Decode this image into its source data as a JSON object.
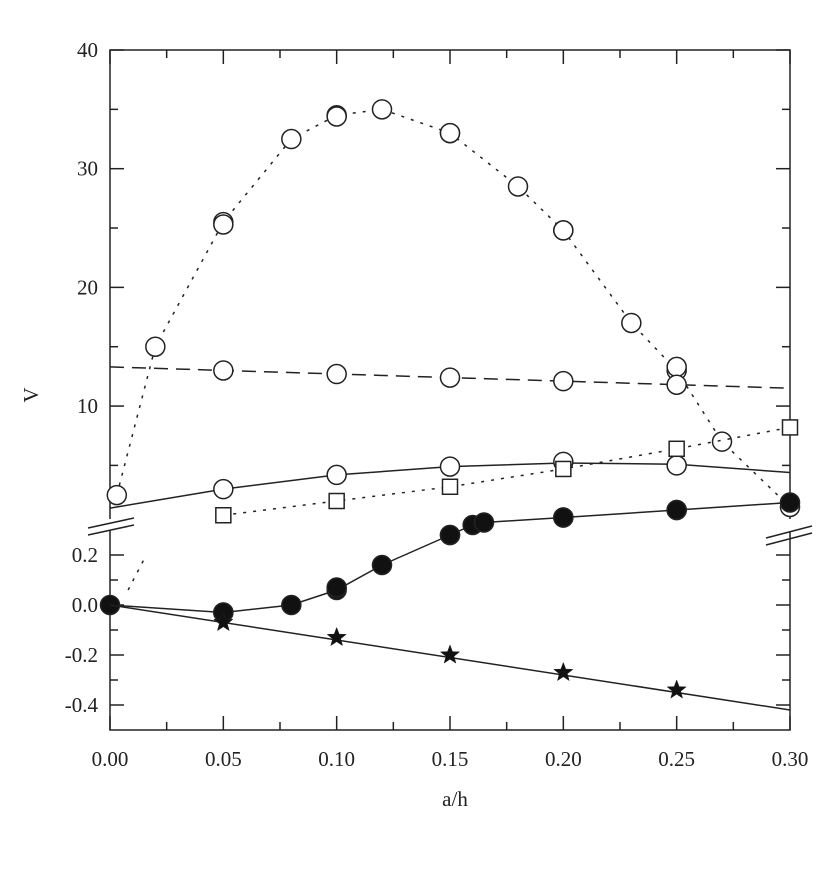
{
  "chart_data": {
    "type": "line",
    "xlabel": "a/h",
    "ylabel": "V",
    "xlim": [
      0,
      0.3
    ],
    "xticks": [
      {
        "value": 0,
        "label": "0.00"
      },
      {
        "value": 0.05,
        "label": "0.05"
      },
      {
        "value": 0.1,
        "label": "0.10"
      },
      {
        "value": 0.15,
        "label": "0.15"
      },
      {
        "value": 0.2,
        "label": "0.20"
      },
      {
        "value": 0.25,
        "label": "0.25"
      },
      {
        "value": 0.3,
        "label": "0.30"
      }
    ],
    "xminorticks": [
      0.025,
      0.075,
      0.125,
      0.175,
      0.225,
      0.275
    ],
    "panels": [
      {
        "ylim": [
          0.4,
          40
        ],
        "yticks": [
          10,
          20,
          30,
          40
        ],
        "yminorticks": [
          5,
          15,
          25,
          35
        ],
        "series": [
          {
            "marker": "open-circle",
            "line": "dotted",
            "x": [
              0.003,
              0.02,
              0.05,
              0.08,
              0.1,
              0.12,
              0.15,
              0.18,
              0.2,
              0.23,
              0.25,
              0.27,
              0.3
            ],
            "values": [
              2.5,
              15,
              25.5,
              32.5,
              34.5,
              35,
              33,
              28.5,
              24.8,
              17,
              13,
              7,
              1.5
            ]
          },
          {
            "marker": "open-circle",
            "line": "none",
            "x": [
              0.05,
              0.1,
              0.15,
              0.2,
              0.25
            ],
            "values": [
              25.3,
              34.4,
              33.0,
              24.8,
              13.3
            ]
          },
          {
            "marker": "none",
            "line": "dashed",
            "x": [
              0,
              0.1,
              0.2,
              0.3
            ],
            "values": [
              13.3,
              12.7,
              12.1,
              11.5
            ]
          },
          {
            "marker": "open-circle",
            "line": "none",
            "x": [
              0.05,
              0.1,
              0.15,
              0.2,
              0.25
            ],
            "values": [
              13.0,
              12.7,
              12.4,
              12.1,
              11.8
            ]
          },
          {
            "marker": "none",
            "line": "solid",
            "x": [
              0,
              0.05,
              0.1,
              0.15,
              0.2,
              0.25,
              0.3
            ],
            "values": [
              1.4,
              3.0,
              4.2,
              4.9,
              5.2,
              5.1,
              4.4
            ]
          },
          {
            "marker": "open-circle",
            "line": "none",
            "x": [
              0.05,
              0.1,
              0.15,
              0.2,
              0.25
            ],
            "values": [
              3.0,
              4.2,
              4.9,
              5.3,
              5.0
            ]
          },
          {
            "marker": "open-square",
            "line": "dotted",
            "x": [
              0.05,
              0.1,
              0.15,
              0.2,
              0.25,
              0.3
            ],
            "values": [
              0.8,
              2.0,
              3.2,
              4.7,
              6.4,
              8.2
            ]
          }
        ]
      },
      {
        "ylim": [
          -0.5,
          0.42
        ],
        "yticks": [
          {
            "value": -0.4,
            "label": "-0.4"
          },
          {
            "value": -0.2,
            "label": "-0.2"
          },
          {
            "value": 0,
            "label": "0.0"
          },
          {
            "value": 0.2,
            "label": "0.2"
          }
        ],
        "yminorticks": [
          -0.3,
          -0.1,
          0.1
        ],
        "series": [
          {
            "marker": "none",
            "line": "dotted",
            "x": [
              0.008,
              0.016
            ],
            "values": [
              0.06,
              0.2
            ]
          },
          {
            "marker": "filled-circle",
            "line": "solid",
            "x": [
              0,
              0.05,
              0.08,
              0.1,
              0.12,
              0.15,
              0.16,
              0.165,
              0.2,
              0.25,
              0.3
            ],
            "values": [
              0,
              -0.03,
              0,
              0.06,
              0.16,
              0.28,
              0.32,
              0.33,
              0.35,
              0.38,
              0.41
            ]
          },
          {
            "marker": "filled-circle",
            "line": "none",
            "x": [
              0.05,
              0.1,
              0.15,
              0.2,
              0.25
            ],
            "values": [
              -0.03,
              0.07,
              0.28,
              0.35,
              0.38
            ]
          },
          {
            "marker": "none",
            "line": "solid",
            "x": [
              0,
              0.3
            ],
            "values": [
              0,
              -0.42
            ]
          },
          {
            "marker": "star",
            "line": "none",
            "x": [
              0.05,
              0.1,
              0.15,
              0.2,
              0.25
            ],
            "values": [
              -0.07,
              -0.13,
              -0.2,
              -0.27,
              -0.34
            ]
          }
        ]
      }
    ]
  }
}
